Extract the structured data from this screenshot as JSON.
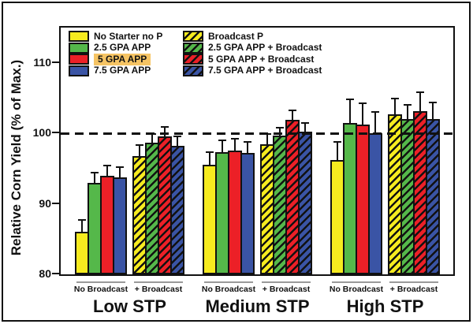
{
  "figure": {
    "background": "#ffffff",
    "border_color": "#111111",
    "axis_color": "#111111",
    "overline_color": "#9a9a9a",
    "highlight_color": "#F6C464"
  },
  "chart_data": {
    "type": "bar",
    "title": "",
    "xlabel": "",
    "ylabel": "Relative Corn Yield (% of Max.)",
    "ylim": [
      80,
      115
    ],
    "yticks": [
      80,
      90,
      100,
      110
    ],
    "grid": false,
    "reference_line": {
      "y": 100,
      "style": "dashed",
      "color": "#111111"
    },
    "legend_position": "inside-top-left",
    "group_labels": [
      "Low STP",
      "Medium STP",
      "High STP"
    ],
    "subgroup_labels": [
      "No Broadcast",
      "+ Broadcast"
    ],
    "error_bars": "upper-only",
    "series": [
      {
        "name": "No Starter no P",
        "color": "#F6EB1F",
        "hatch": false,
        "highlight": false,
        "subgroup": 0,
        "values": [
          86.0,
          95.5,
          96.2
        ],
        "errors": [
          2.0,
          2.1,
          2.9
        ]
      },
      {
        "name": "2.5 GPA APP",
        "color": "#55B84A",
        "hatch": false,
        "highlight": false,
        "subgroup": 0,
        "values": [
          93.0,
          97.3,
          101.5
        ],
        "errors": [
          1.8,
          2.0,
          3.7
        ]
      },
      {
        "name": "5 GPA APP",
        "color": "#EC2027",
        "hatch": false,
        "highlight": true,
        "subgroup": 0,
        "values": [
          94.0,
          97.6,
          101.2
        ],
        "errors": [
          1.8,
          2.0,
          3.3
        ]
      },
      {
        "name": "7.5 GPA APP",
        "color": "#3A54A5",
        "hatch": false,
        "highlight": false,
        "subgroup": 0,
        "values": [
          93.8,
          97.2,
          100.0
        ],
        "errors": [
          1.8,
          1.9,
          3.4
        ]
      },
      {
        "name": "Broadcast P",
        "color": "#F6EB1F",
        "hatch": true,
        "highlight": false,
        "subgroup": 1,
        "values": [
          96.8,
          98.5,
          102.7
        ],
        "errors": [
          1.9,
          1.8,
          2.6
        ]
      },
      {
        "name": "2.5 GPA APP + Broadcast",
        "color": "#55B84A",
        "hatch": true,
        "highlight": false,
        "subgroup": 1,
        "values": [
          98.7,
          99.7,
          102.0
        ],
        "errors": [
          1.6,
          1.5,
          2.4
        ]
      },
      {
        "name": "5 GPA APP + Broadcast",
        "color": "#EC2027",
        "hatch": true,
        "highlight": false,
        "subgroup": 1,
        "values": [
          99.6,
          101.9,
          103.2
        ],
        "errors": [
          1.7,
          1.7,
          3.0
        ]
      },
      {
        "name": "7.5 GPA APP + Broadcast",
        "color": "#3A54A5",
        "hatch": true,
        "highlight": false,
        "subgroup": 1,
        "values": [
          98.2,
          100.2,
          102.0
        ],
        "errors": [
          1.7,
          1.6,
          2.7
        ]
      }
    ]
  }
}
